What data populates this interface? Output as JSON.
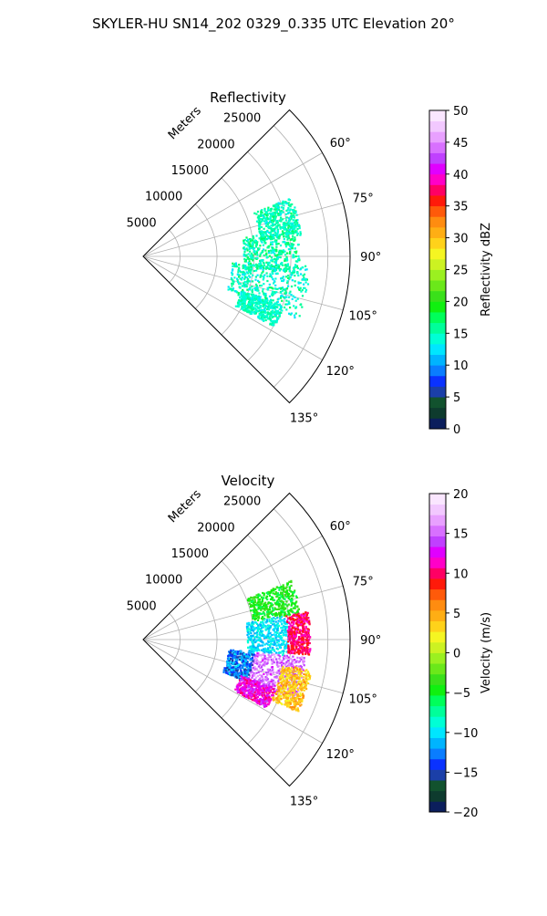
{
  "figure": {
    "suptitle": "SKYLER-HU  SN14_202  0329_0.335 UTC Elevation 20°"
  },
  "chart_data": [
    {
      "type": "polar-sector",
      "title": "Reflectivity",
      "radial_label": "Meters",
      "theta_ticks": [
        {
          "deg": 60,
          "label": "60°"
        },
        {
          "deg": 75,
          "label": "75°"
        },
        {
          "deg": 90,
          "label": "90°"
        },
        {
          "deg": 105,
          "label": "105°"
        },
        {
          "deg": 120,
          "label": "120°"
        },
        {
          "deg": 135,
          "label": "135°"
        }
      ],
      "theta_range": [
        45,
        135
      ],
      "r_ticks": [
        {
          "r": 5000,
          "label": "5000"
        },
        {
          "r": 10000,
          "label": "10000"
        },
        {
          "r": 15000,
          "label": "15000"
        },
        {
          "r": 20000,
          "label": "20000"
        },
        {
          "r": 25000,
          "label": "25000"
        }
      ],
      "r_range": [
        0,
        28000
      ],
      "colorbar": {
        "label": "Reflectivity dBZ",
        "range": [
          0,
          50
        ],
        "ticks": [
          {
            "v": 0,
            "label": "0"
          },
          {
            "v": 5,
            "label": "5"
          },
          {
            "v": 10,
            "label": "10"
          },
          {
            "v": 15,
            "label": "15"
          },
          {
            "v": 20,
            "label": "20"
          },
          {
            "v": 25,
            "label": "25"
          },
          {
            "v": 30,
            "label": "30"
          },
          {
            "v": 35,
            "label": "35"
          },
          {
            "v": 40,
            "label": "40"
          },
          {
            "v": 45,
            "label": "45"
          },
          {
            "v": 50,
            "label": "50"
          }
        ],
        "colors": [
          "#0b1e5c",
          "#0e3b2e",
          "#12522e",
          "#1b3fa8",
          "#0a32ff",
          "#0a7dff",
          "#00b4ff",
          "#00e6ff",
          "#00ffd5",
          "#00ff9a",
          "#00ff5a",
          "#10f010",
          "#3ae01a",
          "#6be81a",
          "#9bf020",
          "#ccf222",
          "#f5f522",
          "#ffd21a",
          "#ffae14",
          "#ff8c10",
          "#ff5a0a",
          "#ff1a0a",
          "#ff0064",
          "#ff00c8",
          "#e000ff",
          "#c040ff",
          "#d870ff",
          "#e8a0ff",
          "#f2c8ff",
          "#fae6ff"
        ]
      },
      "clusters": [
        {
          "theta": [
            68,
            82
          ],
          "r": [
            16000,
            21500
          ],
          "value": [
            13,
            17
          ]
        },
        {
          "theta": [
            79,
            96
          ],
          "r": [
            13500,
            21000
          ],
          "value": [
            13,
            18
          ]
        },
        {
          "theta": [
            93,
            112
          ],
          "r": [
            12000,
            22500
          ],
          "value": [
            12,
            17
          ]
        },
        {
          "theta": [
            109,
            118
          ],
          "r": [
            14000,
            20000
          ],
          "value": [
            13,
            16
          ]
        }
      ]
    },
    {
      "type": "polar-sector",
      "title": "Velocity",
      "radial_label": "Meters",
      "theta_ticks": [
        {
          "deg": 60,
          "label": "60°"
        },
        {
          "deg": 75,
          "label": "75°"
        },
        {
          "deg": 90,
          "label": "90°"
        },
        {
          "deg": 105,
          "label": "105°"
        },
        {
          "deg": 120,
          "label": "120°"
        },
        {
          "deg": 135,
          "label": "135°"
        }
      ],
      "theta_range": [
        45,
        135
      ],
      "r_ticks": [
        {
          "r": 5000,
          "label": "5000"
        },
        {
          "r": 10000,
          "label": "10000"
        },
        {
          "r": 15000,
          "label": "15000"
        },
        {
          "r": 20000,
          "label": "20000"
        },
        {
          "r": 25000,
          "label": "25000"
        }
      ],
      "r_range": [
        0,
        28000
      ],
      "colorbar": {
        "label": "Velocity (m/s)",
        "range": [
          -20,
          20
        ],
        "ticks": [
          {
            "v": -20,
            "label": "−20"
          },
          {
            "v": -15,
            "label": "−15"
          },
          {
            "v": -10,
            "label": "−10"
          },
          {
            "v": -5,
            "label": "−5"
          },
          {
            "v": 0,
            "label": "0"
          },
          {
            "v": 5,
            "label": "5"
          },
          {
            "v": 10,
            "label": "10"
          },
          {
            "v": 15,
            "label": "15"
          },
          {
            "v": 20,
            "label": "20"
          }
        ],
        "colors": [
          "#0b1e5c",
          "#0e3b2e",
          "#12522e",
          "#1b3fa8",
          "#0a32ff",
          "#0a7dff",
          "#00b4ff",
          "#00e6ff",
          "#00ffd5",
          "#00ff9a",
          "#00ff5a",
          "#10f010",
          "#3ae01a",
          "#6be81a",
          "#9bf020",
          "#ccf222",
          "#f5f522",
          "#ffd21a",
          "#ffae14",
          "#ff8c10",
          "#ff5a0a",
          "#ff1a0a",
          "#ff0064",
          "#ff00c8",
          "#e000ff",
          "#c040ff",
          "#d870ff",
          "#e8a0ff",
          "#f2c8ff",
          "#fae6ff"
        ]
      },
      "clusters": [
        {
          "theta": [
            68,
            80
          ],
          "r": [
            15000,
            21500
          ],
          "value": [
            -6,
            -3
          ]
        },
        {
          "theta": [
            80,
            96
          ],
          "r": [
            14000,
            19500
          ],
          "value": [
            -12,
            -8
          ]
        },
        {
          "theta": [
            80,
            95
          ],
          "r": [
            19500,
            22500
          ],
          "value": [
            8,
            12
          ]
        },
        {
          "theta": [
            96,
            112
          ],
          "r": [
            15000,
            22000
          ],
          "value": [
            13,
            17
          ]
        },
        {
          "theta": [
            96,
            112
          ],
          "r": [
            11500,
            15000
          ],
          "value": [
            -16,
            -10
          ]
        },
        {
          "theta": [
            100,
            115
          ],
          "r": [
            19000,
            23000
          ],
          "value": [
            2,
            6
          ]
        },
        {
          "theta": [
            110,
            119
          ],
          "r": [
            14000,
            19000
          ],
          "value": [
            10,
            14
          ]
        }
      ]
    }
  ]
}
